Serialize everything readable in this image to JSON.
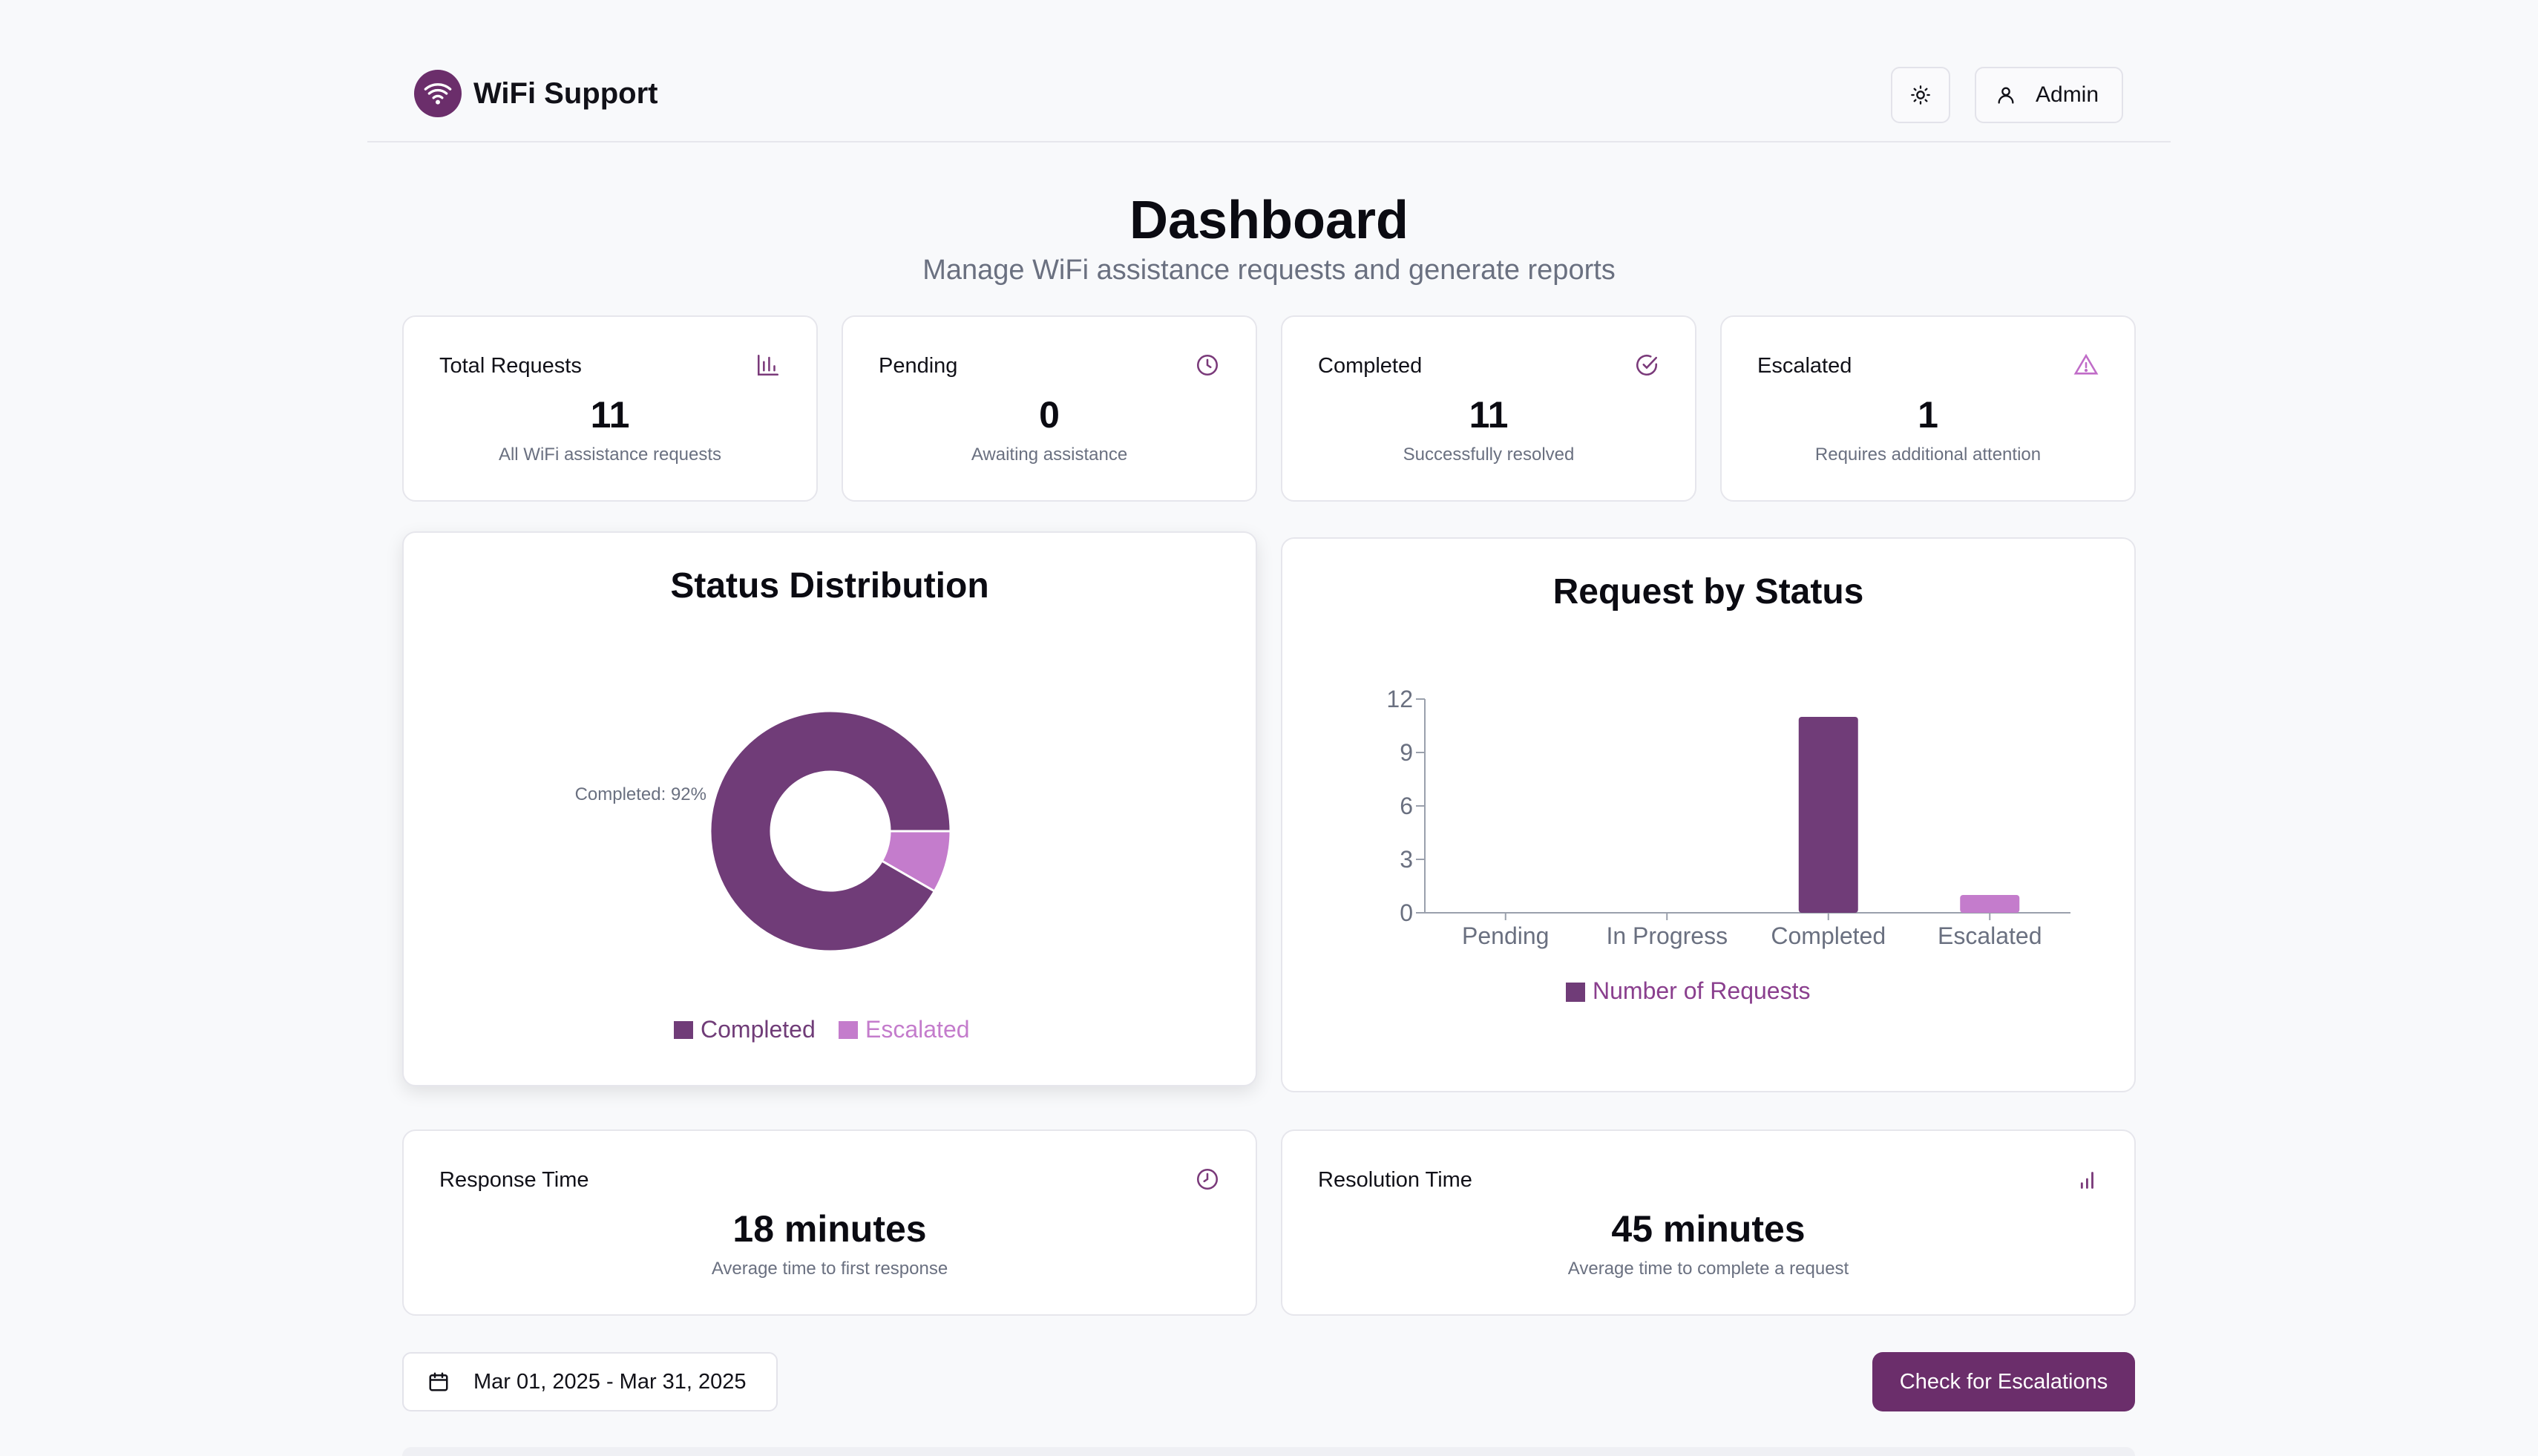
{
  "header": {
    "app_title": "WiFi Support",
    "logo_icon": "wifi-icon",
    "theme_icon": "sun-icon",
    "user_icon": "user-icon",
    "admin_label": "Admin"
  },
  "page": {
    "title": "Dashboard",
    "subtitle": "Manage WiFi assistance requests and generate reports"
  },
  "stats": [
    {
      "title": "Total Requests",
      "value": "11",
      "desc": "All WiFi assistance requests",
      "icon": "bar-chart-icon"
    },
    {
      "title": "Pending",
      "value": "0",
      "desc": "Awaiting assistance",
      "icon": "clock-icon"
    },
    {
      "title": "Completed",
      "value": "11",
      "desc": "Successfully resolved",
      "icon": "check-circle-icon"
    },
    {
      "title": "Escalated",
      "value": "1",
      "desc": "Requires additional attention",
      "icon": "alert-triangle-icon"
    }
  ],
  "metrics": [
    {
      "title": "Response Time",
      "value": "18 minutes",
      "desc": "Average time to first response",
      "icon": "clock-icon"
    },
    {
      "title": "Resolution Time",
      "value": "45 minutes",
      "desc": "Average time to complete a request",
      "icon": "signal-bars-icon"
    }
  ],
  "colors": {
    "primary": "#6b2e6b",
    "pie_completed": "#703c78",
    "pie_escalated": "#c47ccc",
    "bar": "#703c78",
    "bar_escalated": "#c47ccc"
  },
  "chart_data": [
    {
      "type": "pie",
      "title": "Status Distribution",
      "labels": [
        "Completed",
        "Escalated"
      ],
      "values": [
        11,
        1
      ],
      "slice_label": "Completed: 92%",
      "legend": [
        "Completed",
        "Escalated"
      ],
      "legend_position": "bottom"
    },
    {
      "type": "bar",
      "title": "Request by Status",
      "categories": [
        "Pending",
        "In Progress",
        "Completed",
        "Escalated"
      ],
      "series": [
        {
          "name": "Number of Requests",
          "values": [
            0,
            0,
            11,
            1
          ]
        }
      ],
      "yticks": [
        "0",
        "3",
        "6",
        "9",
        "12"
      ],
      "ylim": [
        0,
        12
      ],
      "legend_position": "bottom"
    }
  ],
  "footer": {
    "date_range": "Mar 01, 2025 - Mar 31, 2025",
    "calendar_icon": "calendar-icon",
    "escalation_button": "Check for Escalations"
  }
}
